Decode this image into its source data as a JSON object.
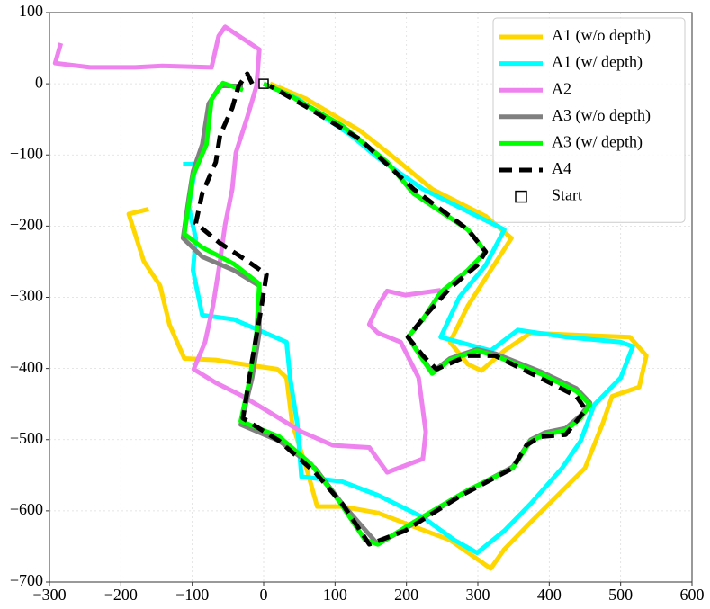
{
  "chart_data": {
    "type": "line",
    "xlim": [
      -300,
      600
    ],
    "xticks": [
      {
        "value": -300,
        "label": "−300"
      },
      {
        "value": -200,
        "label": "−200"
      },
      {
        "value": -100,
        "label": "−100"
      },
      0,
      100,
      200,
      300,
      400,
      500,
      600
    ],
    "ylim": [
      -700,
      100
    ],
    "yticks": [
      {
        "value": -700,
        "label": "−700"
      },
      {
        "value": -600,
        "label": "−600"
      },
      {
        "value": -500,
        "label": "−500"
      },
      {
        "value": -400,
        "label": "−400"
      },
      {
        "value": -300,
        "label": "−300"
      },
      {
        "value": -200,
        "label": "−200"
      },
      {
        "value": -100,
        "label": "−100"
      },
      0,
      100
    ],
    "grid": true,
    "legend": "upper right",
    "series": [
      {
        "name": "A1 (w/o depth)",
        "color": "#ffd700",
        "linestyle": "solid",
        "x": [
          -161,
          -189,
          -168,
          -145,
          -132,
          -111,
          -67,
          -29,
          19,
          32,
          40,
          60,
          75,
          110,
          160,
          210,
          261,
          318,
          337,
          374,
          412,
          450,
          475,
          488,
          526,
          536,
          513,
          437,
          374,
          337,
          305,
          286,
          261,
          286,
          318,
          347,
          311,
          236,
          183,
          135,
          59,
          9
        ],
        "y": [
          -176,
          -183,
          -249,
          -284,
          -338,
          -386,
          -388,
          -394,
          -401,
          -413,
          -477,
          -540,
          -594,
          -594,
          -603,
          -622,
          -641,
          -681,
          -654,
          -616,
          -578,
          -540,
          -477,
          -439,
          -426,
          -382,
          -356,
          -353,
          -350,
          -375,
          -403,
          -394,
          -363,
          -312,
          -262,
          -217,
          -186,
          -148,
          -104,
          -66,
          -21,
          0
        ]
      },
      {
        "name": "A1 (w/ depth)",
        "color": "#00ffff",
        "linestyle": "solid",
        "x": [
          -113,
          -95,
          -105,
          -95,
          -99,
          -86,
          -42,
          32,
          37,
          47,
          53,
          110,
          160,
          223,
          267,
          299,
          337,
          374,
          418,
          444,
          463,
          500,
          517,
          500,
          425,
          356,
          318,
          274,
          248,
          274,
          311,
          337,
          299,
          223,
          160,
          122,
          47,
          0
        ],
        "y": [
          -113,
          -113,
          -173,
          -217,
          -262,
          -325,
          -331,
          -363,
          -413,
          -477,
          -552,
          -559,
          -578,
          -609,
          -641,
          -659,
          -628,
          -590,
          -540,
          -502,
          -451,
          -413,
          -369,
          -363,
          -356,
          -346,
          -375,
          -363,
          -356,
          -300,
          -255,
          -205,
          -186,
          -148,
          -104,
          -72,
          -21,
          0
        ]
      },
      {
        "name": "A2",
        "color": "#ee82ee",
        "linestyle": "solid",
        "x": [
          -284,
          -292,
          -243,
          -180,
          -142,
          -73,
          -63,
          -54,
          -6,
          -10,
          -23,
          -39,
          -44,
          -54,
          -63,
          -71,
          -82,
          -98,
          -67,
          -29,
          9,
          53,
          97,
          148,
          173,
          223,
          227,
          217,
          192,
          160,
          148,
          160,
          173,
          198,
          248
        ],
        "y": [
          57,
          29,
          23,
          23,
          25,
          23,
          67,
          80,
          48,
          -3,
          -47,
          -97,
          -148,
          -198,
          -262,
          -312,
          -363,
          -401,
          -420,
          -439,
          -462,
          -489,
          -508,
          -511,
          -546,
          -527,
          -489,
          -413,
          -363,
          -350,
          -338,
          -312,
          -291,
          -297,
          -290
        ]
      },
      {
        "name": "A3 (w/o depth)",
        "color": "#808080",
        "linestyle": "solid",
        "x": [
          -29,
          -61,
          -77,
          -86,
          -99,
          -105,
          -113,
          -86,
          -42,
          -6,
          -6,
          -16,
          -32,
          22,
          72,
          110,
          160,
          210,
          286,
          349,
          374,
          394,
          423,
          444,
          457,
          438,
          387,
          324,
          299,
          261,
          236,
          223,
          202,
          223,
          248,
          286,
          311,
          286,
          210,
          173,
          110,
          34,
          0
        ],
        "y": [
          -3,
          -3,
          -28,
          -85,
          -123,
          -161,
          -217,
          -243,
          -262,
          -284,
          -350,
          -413,
          -479,
          -502,
          -540,
          -590,
          -647,
          -618,
          -572,
          -538,
          -500,
          -490,
          -484,
          -466,
          -448,
          -428,
          -404,
          -379,
          -373,
          -386,
          -405,
          -386,
          -356,
          -331,
          -293,
          -262,
          -236,
          -205,
          -154,
          -110,
          -59,
          -15,
          0
        ]
      },
      {
        "name": "A3 (w/ depth)",
        "color": "#00ff00",
        "linestyle": "solid",
        "x": [
          -29,
          -57,
          -73,
          -80,
          -99,
          -111,
          -86,
          -42,
          -6,
          -10,
          -19,
          -32,
          22,
          66,
          104,
          142,
          160,
          210,
          286,
          349,
          374,
          394,
          423,
          444,
          457,
          438,
          387,
          324,
          299,
          261,
          236,
          223,
          202,
          223,
          248,
          286,
          311,
          286,
          210,
          173,
          110,
          34,
          0
        ],
        "y": [
          -9,
          1,
          -22,
          -85,
          -129,
          -211,
          -230,
          -253,
          -281,
          -350,
          -413,
          -474,
          -496,
          -534,
          -584,
          -641,
          -647,
          -616,
          -571,
          -540,
          -502,
          -493,
          -487,
          -470,
          -451,
          -432,
          -407,
          -382,
          -375,
          -388,
          -407,
          -388,
          -356,
          -331,
          -293,
          -262,
          -236,
          -205,
          -154,
          -110,
          -59,
          -15,
          0
        ]
      },
      {
        "name": "A4",
        "color": "#000000",
        "linestyle": "dashed",
        "x": [
          -16,
          -23,
          -35,
          -44,
          -61,
          -67,
          -86,
          -95,
          -61,
          -23,
          4,
          -4,
          -16,
          -29,
          22,
          72,
          110,
          148,
          198,
          274,
          349,
          368,
          387,
          423,
          451,
          438,
          387,
          324,
          286,
          242,
          223,
          202,
          227,
          261,
          299,
          311,
          286,
          210,
          135,
          59,
          9
        ],
        "y": [
          0,
          14,
          -3,
          -34,
          -72,
          -110,
          -154,
          -196,
          -224,
          -249,
          -268,
          -319,
          -388,
          -470,
          -502,
          -546,
          -590,
          -647,
          -628,
          -580,
          -540,
          -508,
          -496,
          -493,
          -458,
          -439,
          -413,
          -382,
          -382,
          -401,
          -382,
          -356,
          -325,
          -287,
          -255,
          -236,
          -205,
          -148,
          -78,
          -32,
          -3
        ]
      }
    ],
    "start": {
      "name": "Start",
      "x": 0,
      "y": 0
    }
  }
}
